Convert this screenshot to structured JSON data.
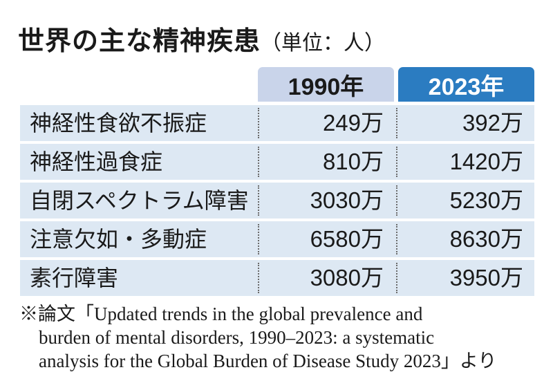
{
  "title": "世界の主な精神疾患",
  "unit": "（単位：人）",
  "chart_data": {
    "type": "table",
    "columns": [
      "1990年",
      "2023年"
    ],
    "rows": [
      {
        "label": "神経性食欲不振症",
        "values": [
          "249万",
          "392万"
        ]
      },
      {
        "label": "神経性過食症",
        "values": [
          "810万",
          "1420万"
        ]
      },
      {
        "label": "自閉スペクトラム障害",
        "values": [
          "3030万",
          "5230万"
        ]
      },
      {
        "label": "注意欠如・多動症",
        "values": [
          "6580万",
          "8630万"
        ]
      },
      {
        "label": "素行障害",
        "values": [
          "3080万",
          "3950万"
        ]
      }
    ]
  },
  "colors": {
    "header_1990": "#c9d4ea",
    "header_2023": "#2b7cc1",
    "row_bg": "#dde8f3"
  },
  "source_note": {
    "line1": "※論文「Updated trends in the global prevalence and",
    "line2": "burden of mental disorders, 1990–2023: a systematic",
    "line3": "analysis for the Global Burden of Disease Study 2023」より"
  }
}
